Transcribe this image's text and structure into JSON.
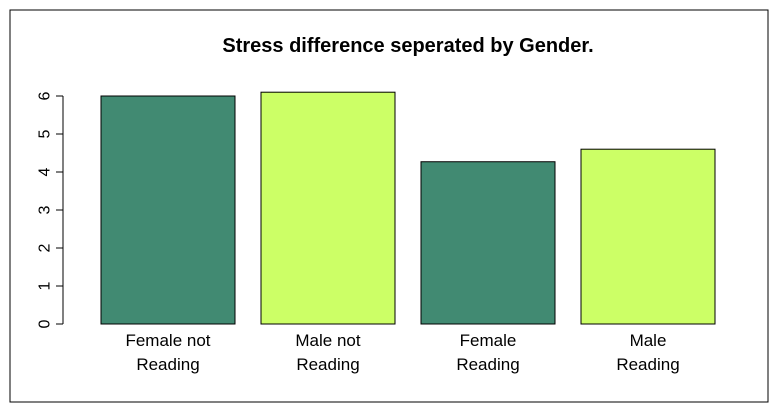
{
  "chart_data": {
    "type": "bar",
    "title": "Stress difference seperated by Gender.",
    "xlabel": "",
    "ylabel": "",
    "categories": [
      [
        "Female not",
        "Reading"
      ],
      [
        "Male not",
        "Reading"
      ],
      [
        "Female",
        "Reading"
      ],
      [
        "Male",
        "Reading"
      ]
    ],
    "values": [
      6.0,
      6.1,
      4.27,
      4.6
    ],
    "colors": [
      "#418A72",
      "#CCFF66",
      "#418A72",
      "#CCFF66"
    ],
    "yticks": [
      "0",
      "1",
      "2",
      "3",
      "4",
      "5",
      "6"
    ],
    "ylim": [
      0,
      6.1
    ],
    "grid": false,
    "legend": "none"
  }
}
